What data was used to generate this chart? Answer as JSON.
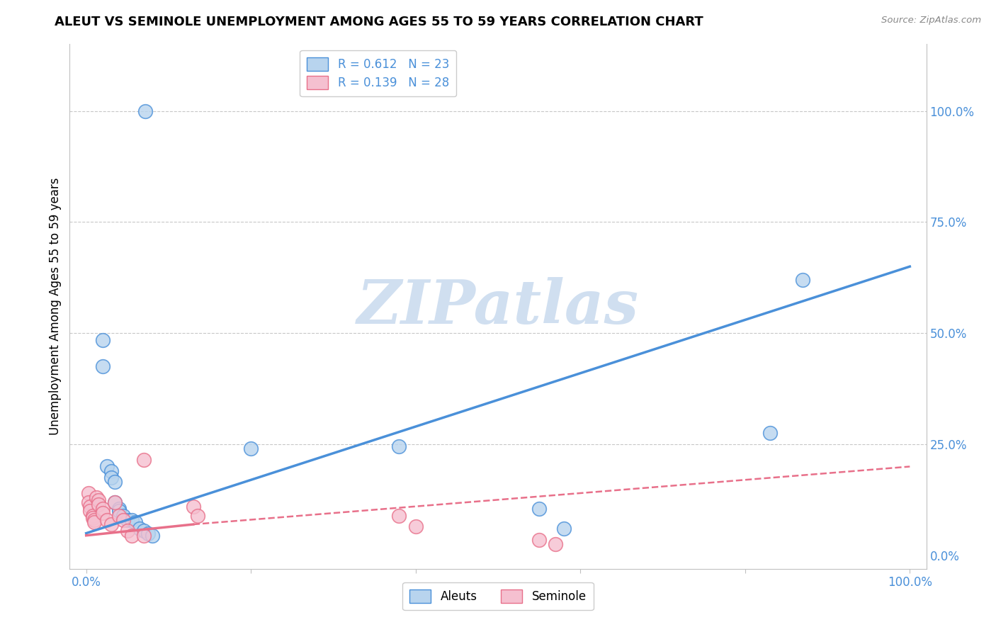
{
  "title": "ALEUT VS SEMINOLE UNEMPLOYMENT AMONG AGES 55 TO 59 YEARS CORRELATION CHART",
  "source": "Source: ZipAtlas.com",
  "ylabel": "Unemployment Among Ages 55 to 59 years",
  "aleuts_color": "#b8d4ee",
  "seminole_color": "#f5c0d0",
  "aleuts_line_color": "#4a90d9",
  "seminole_line_color": "#e8708a",
  "watermark_color": "#d0dff0",
  "watermark_text": "ZIPatlas",
  "aleuts_points": [
    [
      7.2,
      100.0
    ],
    [
      2.0,
      48.5
    ],
    [
      2.0,
      42.5
    ],
    [
      2.5,
      20.0
    ],
    [
      3.0,
      19.0
    ],
    [
      3.0,
      17.5
    ],
    [
      3.5,
      16.5
    ],
    [
      3.5,
      12.0
    ],
    [
      4.0,
      10.5
    ],
    [
      4.0,
      10.0
    ],
    [
      4.5,
      9.0
    ],
    [
      5.0,
      8.0
    ],
    [
      5.5,
      8.0
    ],
    [
      6.0,
      7.5
    ],
    [
      6.5,
      6.0
    ],
    [
      7.0,
      5.5
    ],
    [
      7.5,
      5.0
    ],
    [
      8.0,
      4.5
    ],
    [
      20.0,
      24.0
    ],
    [
      38.0,
      24.5
    ],
    [
      55.0,
      10.5
    ],
    [
      58.0,
      6.0
    ],
    [
      83.0,
      27.5
    ],
    [
      87.0,
      62.0
    ]
  ],
  "seminole_points": [
    [
      0.3,
      14.0
    ],
    [
      0.3,
      12.0
    ],
    [
      0.5,
      11.0
    ],
    [
      0.5,
      10.0
    ],
    [
      0.8,
      9.0
    ],
    [
      0.8,
      8.5
    ],
    [
      1.0,
      8.0
    ],
    [
      1.0,
      7.5
    ],
    [
      1.2,
      13.0
    ],
    [
      1.5,
      12.5
    ],
    [
      1.5,
      11.5
    ],
    [
      2.0,
      10.5
    ],
    [
      2.0,
      9.5
    ],
    [
      2.5,
      8.0
    ],
    [
      3.0,
      7.0
    ],
    [
      3.5,
      12.0
    ],
    [
      4.0,
      9.0
    ],
    [
      4.5,
      8.0
    ],
    [
      5.0,
      5.5
    ],
    [
      5.5,
      4.5
    ],
    [
      7.0,
      21.5
    ],
    [
      13.0,
      11.0
    ],
    [
      13.5,
      9.0
    ],
    [
      38.0,
      9.0
    ],
    [
      40.0,
      6.5
    ],
    [
      55.0,
      3.5
    ],
    [
      57.0,
      2.5
    ],
    [
      7.0,
      4.5
    ]
  ],
  "aleuts_reg_x0": 0,
  "aleuts_reg_y0": 5.0,
  "aleuts_reg_x1": 100,
  "aleuts_reg_y1": 65.0,
  "seminole_reg_solid_x0": 0,
  "seminole_reg_solid_y0": 4.5,
  "seminole_reg_solid_x1": 13,
  "seminole_reg_solid_y1": 7.0,
  "seminole_reg_dash_x0": 13,
  "seminole_reg_dash_y0": 7.0,
  "seminole_reg_dash_x1": 100,
  "seminole_reg_dash_y1": 20.0,
  "xlim_min": -2,
  "xlim_max": 102,
  "ylim_min": -3,
  "ylim_max": 115,
  "xticks": [
    0,
    20,
    40,
    60,
    80,
    100
  ],
  "yticks": [
    0,
    25,
    50,
    75,
    100
  ],
  "grid_yticks": [
    25,
    50,
    75,
    100
  ],
  "title_fontsize": 13,
  "axis_fontsize": 12,
  "tick_color": "#4a90d9",
  "legend_r_color": "#4a90d9",
  "legend_n_color": "#4a90d9"
}
